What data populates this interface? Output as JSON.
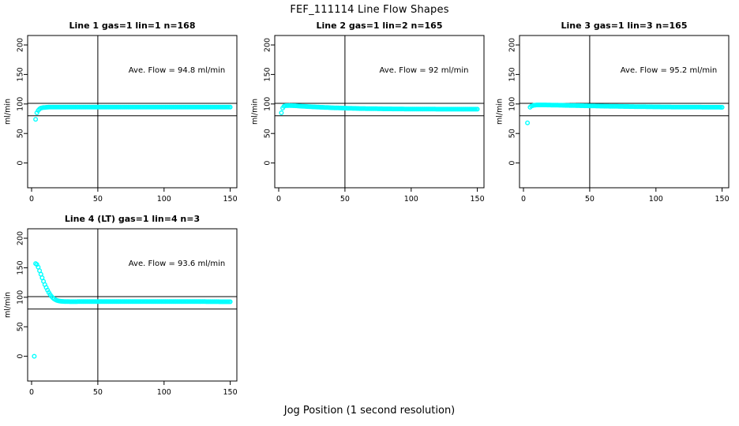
{
  "chart_data": {
    "type": "scatter",
    "title": "FEF_111114  Line Flow Shapes",
    "xlabel": "Jog Position (1 second resolution)",
    "ylabel": "ml/min",
    "x_ticks": [
      0,
      50,
      100,
      150
    ],
    "y_ticks": [
      0,
      50,
      100,
      150,
      200
    ],
    "x_range_drawn": [
      -3,
      155
    ],
    "y_range_drawn": [
      -42,
      216
    ],
    "point_color": "#00FFFF",
    "line_color": "#000000",
    "reference_lines": {
      "horizontal": [
        101,
        80
      ],
      "vertical": [
        50
      ]
    },
    "sampling_note": "Open cyan circles drawn at every integer jog position (1 s resolution); profile lists estimated [x, ml/min] control points, linearly interpolated.",
    "panels": [
      {
        "title": "Line 1 gas=1 lin=1 n=168",
        "annotation": "Ave. Flow =  94.8  ml/min",
        "ave_flow_ml_min": 94.8,
        "n": 168,
        "outlier_points": [
          [
            3,
            74
          ]
        ],
        "profile": [
          [
            4,
            85
          ],
          [
            5,
            89
          ],
          [
            6,
            91.5
          ],
          [
            7,
            93
          ],
          [
            9,
            94
          ],
          [
            13,
            94.6
          ],
          [
            25,
            94.8
          ],
          [
            150,
            94.8
          ]
        ]
      },
      {
        "title": "Line 2 gas=1 lin=2 n=165",
        "annotation": "Ave. Flow =  92  ml/min",
        "ave_flow_ml_min": 92,
        "n": 165,
        "outlier_points": [
          [
            2,
            85
          ]
        ],
        "profile": [
          [
            3,
            93
          ],
          [
            4,
            96
          ],
          [
            5,
            97
          ],
          [
            8,
            97.3
          ],
          [
            12,
            97
          ],
          [
            20,
            95.8
          ],
          [
            30,
            94.6
          ],
          [
            40,
            93.6
          ],
          [
            50,
            92.9
          ],
          [
            60,
            92.3
          ],
          [
            80,
            91.7
          ],
          [
            100,
            91.4
          ],
          [
            120,
            91.2
          ],
          [
            150,
            91.2
          ]
        ]
      },
      {
        "title": "Line 3 gas=1 lin=3 n=165",
        "annotation": "Ave. Flow =  95.2  ml/min",
        "ave_flow_ml_min": 95.2,
        "n": 165,
        "outlier_points": [
          [
            3,
            68
          ]
        ],
        "profile": [
          [
            5,
            94.5
          ],
          [
            6,
            96.5
          ],
          [
            8,
            97.8
          ],
          [
            10,
            98.3
          ],
          [
            15,
            98.4
          ],
          [
            25,
            98
          ],
          [
            40,
            97.2
          ],
          [
            60,
            96.3
          ],
          [
            80,
            95.6
          ],
          [
            100,
            95
          ],
          [
            120,
            94.7
          ],
          [
            150,
            94.4
          ]
        ]
      },
      {
        "title": "Line 4 (LT) gas=1 lin=4 n=3",
        "annotation": "Ave. Flow =  93.6  ml/min",
        "ave_flow_ml_min": 93.6,
        "n": 3,
        "outlier_points": [
          [
            2,
            0
          ]
        ],
        "profile": [
          [
            3,
            157
          ],
          [
            4,
            155.5
          ],
          [
            5,
            151
          ],
          [
            6,
            145
          ],
          [
            7,
            139
          ],
          [
            8,
            133
          ],
          [
            9,
            127
          ],
          [
            10,
            121.5
          ],
          [
            11,
            116.5
          ],
          [
            12,
            112
          ],
          [
            13,
            108
          ],
          [
            14,
            104.5
          ],
          [
            15,
            101.5
          ],
          [
            16,
            99
          ],
          [
            17,
            97.2
          ],
          [
            18,
            95.8
          ],
          [
            19,
            94.8
          ],
          [
            20,
            94
          ],
          [
            22,
            93.2
          ],
          [
            25,
            92.7
          ],
          [
            30,
            92.5
          ],
          [
            50,
            92.7
          ],
          [
            80,
            92.8
          ],
          [
            100,
            92.8
          ],
          [
            120,
            92.7
          ],
          [
            150,
            92.3
          ]
        ]
      }
    ]
  }
}
